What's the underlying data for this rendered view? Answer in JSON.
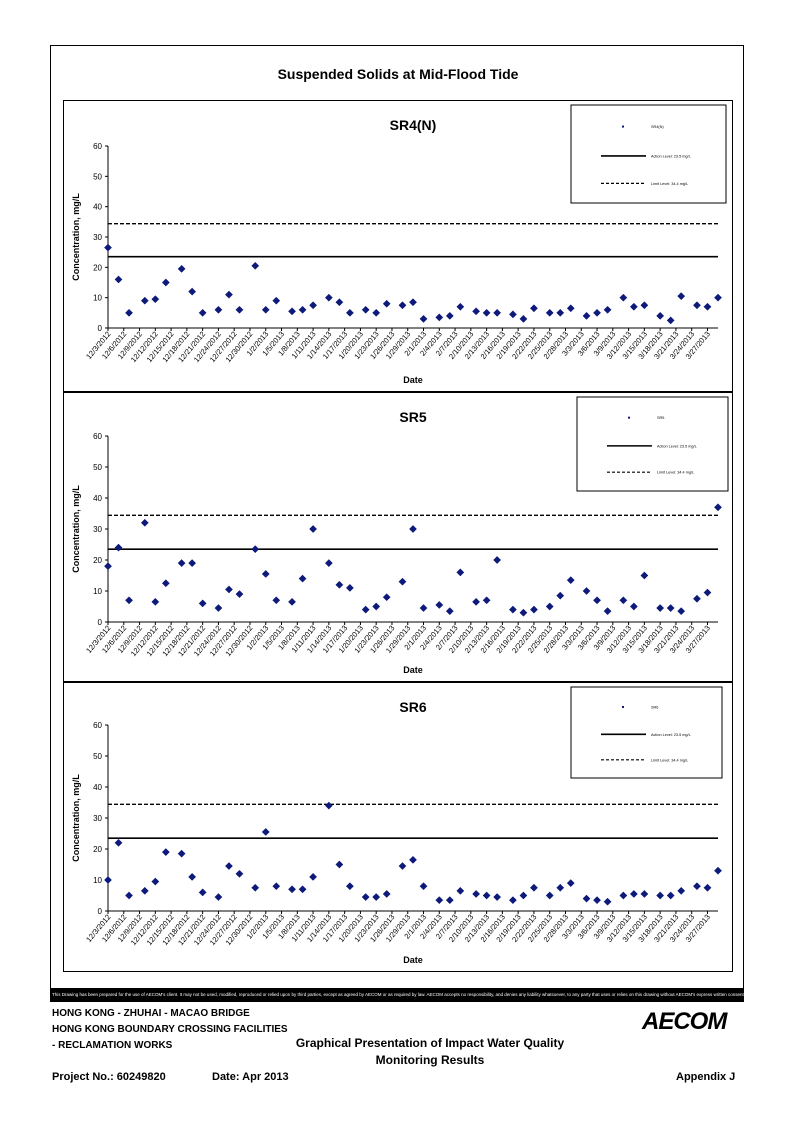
{
  "page_title": "Suspended Solids at Mid-Flood Tide",
  "dates": [
    "12/3/2012",
    "12/6/2012",
    "12/9/2012",
    "12/12/2012",
    "12/15/2012",
    "12/18/2012",
    "12/21/2012",
    "12/24/2012",
    "12/27/2012",
    "12/30/2012",
    "1/2/2013",
    "1/5/2013",
    "1/8/2013",
    "1/11/2013",
    "1/14/2013",
    "1/17/2013",
    "1/20/2013",
    "1/23/2013",
    "1/26/2013",
    "1/29/2013",
    "2/1/2013",
    "2/4/2013",
    "2/7/2013",
    "2/10/2013",
    "2/13/2013",
    "2/16/2013",
    "2/19/2013",
    "2/22/2013",
    "2/25/2013",
    "2/28/2013",
    "3/3/2013",
    "3/6/2013",
    "3/9/2013",
    "3/12/2013",
    "3/15/2013",
    "3/18/2013",
    "3/21/2013",
    "3/24/2013",
    "3/27/2013"
  ],
  "chart_data": [
    {
      "type": "scatter",
      "title": "SR4(N)",
      "xlabel": "Date",
      "ylabel": "Concentration, mg/L",
      "ylim": [
        0,
        60
      ],
      "yticks": [
        0,
        10,
        20,
        30,
        40,
        50,
        60
      ],
      "x_range": [
        "12/3/2012",
        "3/29/2013"
      ],
      "action_level": 23.5,
      "limit_level": 34.4,
      "legend": [
        "SR4(N)",
        "Action Level: 23.5 mg/L",
        "Limit Level: 34.4 mg/L"
      ],
      "legend_position": "top-right",
      "points": [
        [
          "12/3/2012",
          26.5
        ],
        [
          "12/5/2012",
          16
        ],
        [
          "12/7/2012",
          5
        ],
        [
          "12/10/2012",
          9
        ],
        [
          "12/12/2012",
          9.5
        ],
        [
          "12/14/2012",
          15
        ],
        [
          "12/17/2012",
          19.5
        ],
        [
          "12/19/2012",
          12
        ],
        [
          "12/21/2012",
          5
        ],
        [
          "12/24/2012",
          6
        ],
        [
          "12/26/2012",
          11
        ],
        [
          "12/28/2012",
          6
        ],
        [
          "12/31/2012",
          20.5
        ],
        [
          "1/2/2013",
          6
        ],
        [
          "1/4/2013",
          9
        ],
        [
          "1/7/2013",
          5.5
        ],
        [
          "1/9/2013",
          6
        ],
        [
          "1/11/2013",
          7.5
        ],
        [
          "1/14/2013",
          10
        ],
        [
          "1/16/2013",
          8.5
        ],
        [
          "1/18/2013",
          5
        ],
        [
          "1/21/2013",
          6
        ],
        [
          "1/23/2013",
          5
        ],
        [
          "1/25/2013",
          8
        ],
        [
          "1/28/2013",
          7.5
        ],
        [
          "1/30/2013",
          8.5
        ],
        [
          "2/1/2013",
          3
        ],
        [
          "2/4/2013",
          3.5
        ],
        [
          "2/6/2013",
          4
        ],
        [
          "2/8/2013",
          7
        ],
        [
          "2/11/2013",
          5.5
        ],
        [
          "2/13/2013",
          5
        ],
        [
          "2/15/2013",
          5
        ],
        [
          "2/18/2013",
          4.5
        ],
        [
          "2/20/2013",
          3
        ],
        [
          "2/22/2013",
          6.5
        ],
        [
          "2/25/2013",
          5
        ],
        [
          "2/27/2013",
          5
        ],
        [
          "3/1/2013",
          6.5
        ],
        [
          "3/4/2013",
          4
        ],
        [
          "3/6/2013",
          5
        ],
        [
          "3/8/2013",
          6
        ],
        [
          "3/11/2013",
          10
        ],
        [
          "3/13/2013",
          7
        ],
        [
          "3/15/2013",
          7.5
        ],
        [
          "3/18/2013",
          4
        ],
        [
          "3/20/2013",
          2.5
        ],
        [
          "3/22/2013",
          10.5
        ],
        [
          "3/25/2013",
          7.5
        ],
        [
          "3/27/2013",
          7
        ],
        [
          "3/29/2013",
          10
        ]
      ]
    },
    {
      "type": "scatter",
      "title": "SR5",
      "xlabel": "Date",
      "ylabel": "Concentration, mg/L",
      "ylim": [
        0,
        60
      ],
      "yticks": [
        0,
        10,
        20,
        30,
        40,
        50,
        60
      ],
      "x_range": [
        "12/3/2012",
        "3/29/2013"
      ],
      "action_level": 23.5,
      "limit_level": 34.4,
      "legend": [
        "SR5",
        "Action Level: 23.5 mg/L",
        "Limit Level: 34.4 mg/L"
      ],
      "legend_position": "top-right",
      "points": [
        [
          "12/3/2012",
          18
        ],
        [
          "12/5/2012",
          24
        ],
        [
          "12/7/2012",
          7
        ],
        [
          "12/10/2012",
          32
        ],
        [
          "12/12/2012",
          6.5
        ],
        [
          "12/14/2012",
          12.5
        ],
        [
          "12/17/2012",
          19
        ],
        [
          "12/19/2012",
          19
        ],
        [
          "12/21/2012",
          6
        ],
        [
          "12/24/2012",
          4.5
        ],
        [
          "12/26/2012",
          10.5
        ],
        [
          "12/28/2012",
          9
        ],
        [
          "12/31/2012",
          23.5
        ],
        [
          "1/2/2013",
          15.5
        ],
        [
          "1/4/2013",
          7
        ],
        [
          "1/7/2013",
          6.5
        ],
        [
          "1/9/2013",
          14
        ],
        [
          "1/11/2013",
          30
        ],
        [
          "1/14/2013",
          19
        ],
        [
          "1/16/2013",
          12
        ],
        [
          "1/18/2013",
          11
        ],
        [
          "1/21/2013",
          4
        ],
        [
          "1/23/2013",
          5
        ],
        [
          "1/25/2013",
          8
        ],
        [
          "1/28/2013",
          13
        ],
        [
          "1/30/2013",
          30
        ],
        [
          "2/1/2013",
          4.5
        ],
        [
          "2/4/2013",
          5.5
        ],
        [
          "2/6/2013",
          3.5
        ],
        [
          "2/8/2013",
          16
        ],
        [
          "2/11/2013",
          6.5
        ],
        [
          "2/13/2013",
          7
        ],
        [
          "2/15/2013",
          20
        ],
        [
          "2/18/2013",
          4
        ],
        [
          "2/20/2013",
          3
        ],
        [
          "2/22/2013",
          4
        ],
        [
          "2/25/2013",
          5
        ],
        [
          "2/27/2013",
          8.5
        ],
        [
          "3/1/2013",
          13.5
        ],
        [
          "3/4/2013",
          10
        ],
        [
          "3/6/2013",
          7
        ],
        [
          "3/8/2013",
          3.5
        ],
        [
          "3/11/2013",
          7
        ],
        [
          "3/13/2013",
          5
        ],
        [
          "3/15/2013",
          15
        ],
        [
          "3/18/2013",
          4.5
        ],
        [
          "3/20/2013",
          4.5
        ],
        [
          "3/22/2013",
          3.5
        ],
        [
          "3/25/2013",
          7.5
        ],
        [
          "3/27/2013",
          9.5
        ],
        [
          "3/29/2013",
          37
        ]
      ]
    },
    {
      "type": "scatter",
      "title": "SR6",
      "xlabel": "Date",
      "ylabel": "Concentration, mg/L",
      "ylim": [
        0,
        60
      ],
      "yticks": [
        0,
        10,
        20,
        30,
        40,
        50,
        60
      ],
      "x_range": [
        "12/3/2012",
        "3/29/2013"
      ],
      "action_level": 23.5,
      "limit_level": 34.4,
      "legend": [
        "SR6",
        "Action Level: 23.5 mg/L",
        "Limit Level: 34.4 mg/L"
      ],
      "legend_position": "top-right",
      "points": [
        [
          "12/3/2012",
          10
        ],
        [
          "12/5/2012",
          22
        ],
        [
          "12/7/2012",
          5
        ],
        [
          "12/10/2012",
          6.5
        ],
        [
          "12/12/2012",
          9.5
        ],
        [
          "12/14/2012",
          19
        ],
        [
          "12/17/2012",
          18.5
        ],
        [
          "12/19/2012",
          11
        ],
        [
          "12/21/2012",
          6
        ],
        [
          "12/24/2012",
          4.5
        ],
        [
          "12/26/2012",
          14.5
        ],
        [
          "12/28/2012",
          12
        ],
        [
          "12/31/2012",
          7.5
        ],
        [
          "1/2/2013",
          25.5
        ],
        [
          "1/4/2013",
          8
        ],
        [
          "1/7/2013",
          7
        ],
        [
          "1/9/2013",
          7
        ],
        [
          "1/11/2013",
          11
        ],
        [
          "1/14/2013",
          34
        ],
        [
          "1/16/2013",
          15
        ],
        [
          "1/18/2013",
          8
        ],
        [
          "1/21/2013",
          4.5
        ],
        [
          "1/23/2013",
          4.5
        ],
        [
          "1/25/2013",
          5.5
        ],
        [
          "1/28/2013",
          14.5
        ],
        [
          "1/30/2013",
          16.5
        ],
        [
          "2/1/2013",
          8
        ],
        [
          "2/4/2013",
          3.5
        ],
        [
          "2/6/2013",
          3.5
        ],
        [
          "2/8/2013",
          6.5
        ],
        [
          "2/11/2013",
          5.5
        ],
        [
          "2/13/2013",
          5
        ],
        [
          "2/15/2013",
          4.5
        ],
        [
          "2/18/2013",
          3.5
        ],
        [
          "2/20/2013",
          5
        ],
        [
          "2/22/2013",
          7.5
        ],
        [
          "2/25/2013",
          5
        ],
        [
          "2/27/2013",
          7.5
        ],
        [
          "3/1/2013",
          9
        ],
        [
          "3/4/2013",
          4
        ],
        [
          "3/6/2013",
          3.5
        ],
        [
          "3/8/2013",
          3
        ],
        [
          "3/11/2013",
          5
        ],
        [
          "3/13/2013",
          5.5
        ],
        [
          "3/15/2013",
          5.5
        ],
        [
          "3/18/2013",
          5
        ],
        [
          "3/20/2013",
          5
        ],
        [
          "3/22/2013",
          6.5
        ],
        [
          "3/25/2013",
          8
        ],
        [
          "3/27/2013",
          7.5
        ],
        [
          "3/29/2013",
          13
        ]
      ]
    }
  ],
  "disclaimer": "This Drawing has been prepared for the use of AECOM's client. It may not be used, modified, reproduced or relied upon by third parties, except as agreed by AECOM or as required by law. AECOM accepts no responsibility, and denies any liability whatsoever, to any party that uses or relies on this drawing without AECOM's express written consent.",
  "footer": {
    "project_line1": "HONG KONG - ZHUHAI - MACAO BRIDGE",
    "project_line2": "HONG KONG BOUNDARY CROSSING FACILITIES",
    "project_line3": "- RECLAMATION WORKS",
    "drawing_title_line1": "Graphical Presentation of Impact Water Quality",
    "drawing_title_line2": "Monitoring Results",
    "project_no": "Project No.: 60249820",
    "date": "Date: Apr 2013",
    "appendix": "Appendix J",
    "logo_text": "AECOM"
  }
}
